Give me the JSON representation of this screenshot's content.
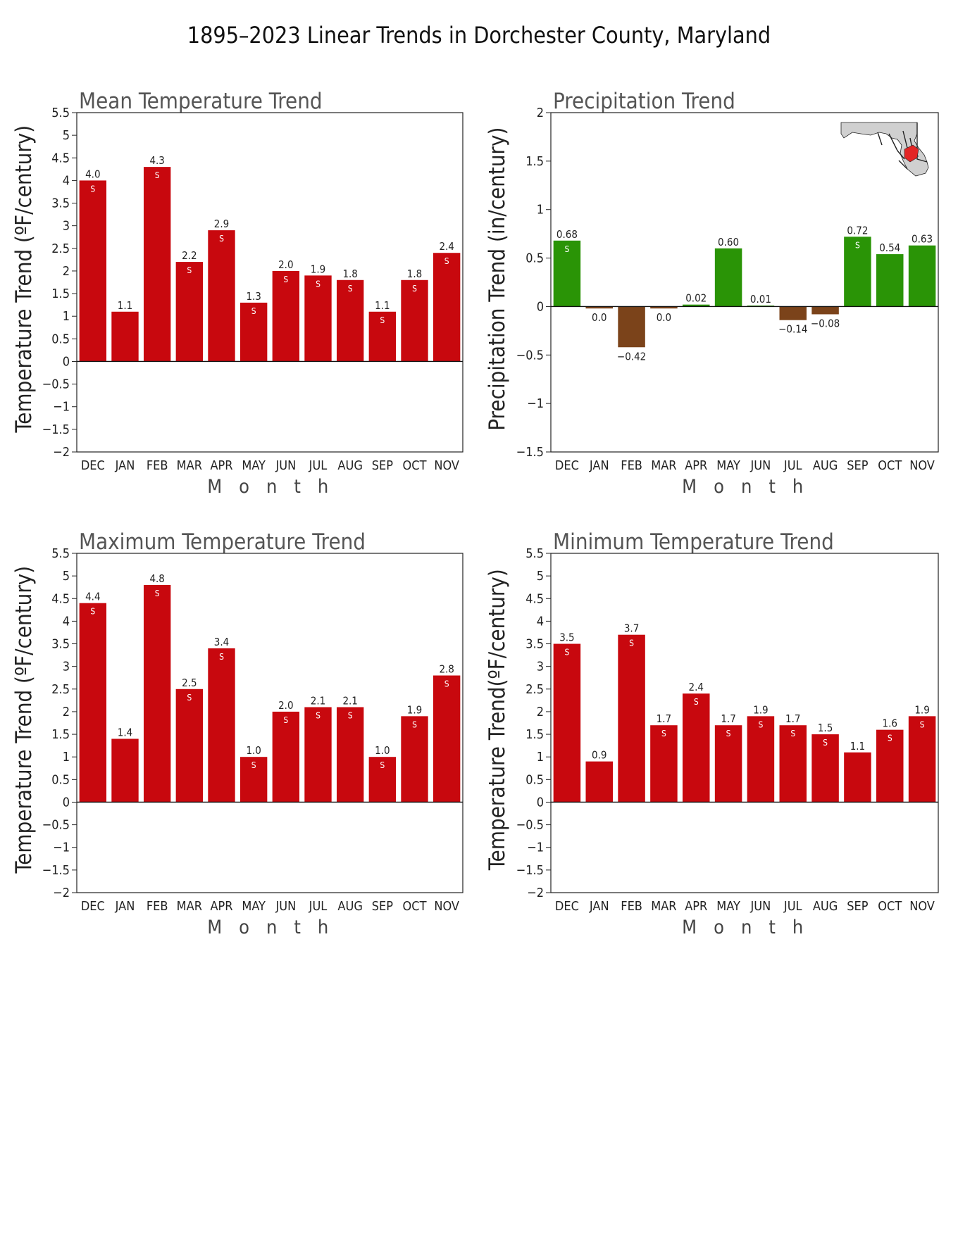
{
  "page": {
    "title": "1895–2023 Linear Trends in Dorchester County, Maryland"
  },
  "chart_data": [
    {
      "type": "bar",
      "title": "Mean Temperature Trend",
      "ylabel": "Temperature Trend (ºF/century)",
      "xlabel": "Month",
      "categories": [
        "DEC",
        "JAN",
        "FEB",
        "MAR",
        "APR",
        "MAY",
        "JUN",
        "JUL",
        "AUG",
        "SEP",
        "OCT",
        "NOV"
      ],
      "values": [
        4.0,
        1.1,
        4.3,
        2.2,
        2.9,
        1.3,
        2.0,
        1.9,
        1.8,
        1.1,
        1.8,
        2.4
      ],
      "value_labels": [
        "4.0",
        "1.1",
        "4.3",
        "2.2",
        "2.9",
        "1.3",
        "2.0",
        "1.9",
        "1.8",
        "1.1",
        "1.8",
        "2.4"
      ],
      "significant": [
        true,
        false,
        true,
        true,
        true,
        true,
        true,
        true,
        true,
        true,
        true,
        true
      ],
      "significance_marker": "S",
      "ylim": [
        -2,
        5.5
      ],
      "yticks": [
        -2,
        -1.5,
        -1,
        -0.5,
        0,
        0.5,
        1,
        1.5,
        2,
        2.5,
        3,
        3.5,
        4,
        4.5,
        5,
        5.5
      ],
      "color_positive": "#c8080e",
      "color_negative": "#c8080e"
    },
    {
      "type": "bar",
      "title": "Precipitation Trend",
      "ylabel": "Precipitation Trend (in/century)",
      "xlabel": "Month",
      "categories": [
        "DEC",
        "JAN",
        "FEB",
        "MAR",
        "APR",
        "MAY",
        "JUN",
        "JUL",
        "AUG",
        "SEP",
        "OCT",
        "NOV"
      ],
      "values": [
        0.68,
        -0.02,
        -0.42,
        -0.02,
        0.02,
        0.6,
        0.01,
        -0.14,
        -0.08,
        0.72,
        0.54,
        0.63
      ],
      "value_labels": [
        "0.68",
        "0.0",
        "−0.42",
        "0.0",
        "0.02",
        "0.60",
        "0.01",
        "−0.14",
        "−0.08",
        "0.72",
        "0.54",
        "0.63"
      ],
      "significant": [
        true,
        false,
        false,
        false,
        false,
        false,
        false,
        false,
        false,
        true,
        false,
        false
      ],
      "significance_marker": "S",
      "ylim": [
        -1.5,
        2
      ],
      "yticks": [
        -1.5,
        -1,
        -0.5,
        0,
        0.5,
        1,
        1.5,
        2
      ],
      "color_positive": "#2a9406",
      "color_negative": "#7b431a",
      "inset": "maryland-county-locator-map",
      "inset_colors": {
        "land": "#d0d0d0",
        "county_lines": "#222222",
        "highlight": "#e32424"
      }
    },
    {
      "type": "bar",
      "title": "Maximum Temperature Trend",
      "ylabel": "Temperature Trend (ºF/century)",
      "xlabel": "Month",
      "categories": [
        "DEC",
        "JAN",
        "FEB",
        "MAR",
        "APR",
        "MAY",
        "JUN",
        "JUL",
        "AUG",
        "SEP",
        "OCT",
        "NOV"
      ],
      "values": [
        4.4,
        1.4,
        4.8,
        2.5,
        3.4,
        1.0,
        2.0,
        2.1,
        2.1,
        1.0,
        1.9,
        2.8
      ],
      "value_labels": [
        "4.4",
        "1.4",
        "4.8",
        "2.5",
        "3.4",
        "1.0",
        "2.0",
        "2.1",
        "2.1",
        "1.0",
        "1.9",
        "2.8"
      ],
      "significant": [
        true,
        false,
        true,
        true,
        true,
        true,
        true,
        true,
        true,
        true,
        true,
        true
      ],
      "significance_marker": "S",
      "ylim": [
        -2,
        5.5
      ],
      "yticks": [
        -2,
        -1.5,
        -1,
        -0.5,
        0,
        0.5,
        1,
        1.5,
        2,
        2.5,
        3,
        3.5,
        4,
        4.5,
        5,
        5.5
      ],
      "color_positive": "#c8080e",
      "color_negative": "#c8080e"
    },
    {
      "type": "bar",
      "title": "Minimum Temperature Trend",
      "ylabel": "Temperature Trend(ºF/century)",
      "xlabel": "Month",
      "categories": [
        "DEC",
        "JAN",
        "FEB",
        "MAR",
        "APR",
        "MAY",
        "JUN",
        "JUL",
        "AUG",
        "SEP",
        "OCT",
        "NOV"
      ],
      "values": [
        3.5,
        0.9,
        3.7,
        1.7,
        2.4,
        1.7,
        1.9,
        1.7,
        1.5,
        1.1,
        1.6,
        1.9
      ],
      "value_labels": [
        "3.5",
        "0.9",
        "3.7",
        "1.7",
        "2.4",
        "1.7",
        "1.9",
        "1.7",
        "1.5",
        "1.1",
        "1.6",
        "1.9"
      ],
      "significant": [
        true,
        false,
        true,
        true,
        true,
        true,
        true,
        true,
        true,
        false,
        true,
        true
      ],
      "significance_marker": "S",
      "ylim": [
        -2,
        5.5
      ],
      "yticks": [
        -2,
        -1.5,
        -1,
        -0.5,
        0,
        0.5,
        1,
        1.5,
        2,
        2.5,
        3,
        3.5,
        4,
        4.5,
        5,
        5.5
      ],
      "color_positive": "#c8080e",
      "color_negative": "#c8080e"
    }
  ]
}
